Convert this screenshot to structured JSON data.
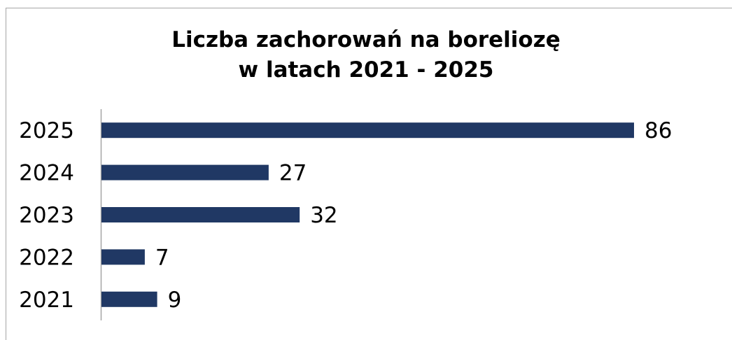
{
  "chart_data": {
    "type": "bar",
    "orientation": "horizontal",
    "title_lines": [
      "Liczba zachorowań na boreliozę",
      "w latach 2021 - 2025"
    ],
    "categories": [
      "2025",
      "2024",
      "2023",
      "2022",
      "2021"
    ],
    "values": [
      86,
      27,
      32,
      7,
      9
    ],
    "xlim": [
      0,
      86
    ],
    "grid": false,
    "legend": "none",
    "data_labels": true,
    "xlabel": "",
    "ylabel": "",
    "bar_color": "#203864"
  }
}
